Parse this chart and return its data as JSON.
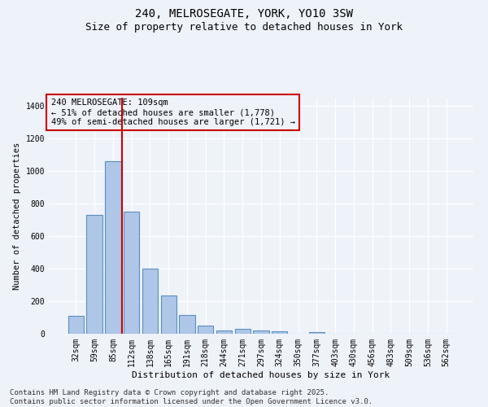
{
  "title1": "240, MELROSEGATE, YORK, YO10 3SW",
  "title2": "Size of property relative to detached houses in York",
  "xlabel": "Distribution of detached houses by size in York",
  "ylabel": "Number of detached properties",
  "categories": [
    "32sqm",
    "59sqm",
    "85sqm",
    "112sqm",
    "138sqm",
    "165sqm",
    "191sqm",
    "218sqm",
    "244sqm",
    "271sqm",
    "297sqm",
    "324sqm",
    "350sqm",
    "377sqm",
    "403sqm",
    "430sqm",
    "456sqm",
    "483sqm",
    "509sqm",
    "536sqm",
    "562sqm"
  ],
  "values": [
    110,
    730,
    1060,
    750,
    400,
    235,
    115,
    52,
    22,
    28,
    22,
    15,
    0,
    10,
    0,
    0,
    0,
    0,
    0,
    0,
    0
  ],
  "bar_color": "#aec6e8",
  "bar_edge_color": "#5a8fc0",
  "vline_color": "#cc0000",
  "vline_x_index": 2.5,
  "annotation_text": "240 MELROSEGATE: 109sqm\n← 51% of detached houses are smaller (1,778)\n49% of semi-detached houses are larger (1,721) →",
  "annotation_box_color": "#cc0000",
  "ylim": [
    0,
    1450
  ],
  "yticks": [
    0,
    200,
    400,
    600,
    800,
    1000,
    1200,
    1400
  ],
  "background_color": "#eef2f9",
  "grid_color": "#ffffff",
  "footnote": "Contains HM Land Registry data © Crown copyright and database right 2025.\nContains public sector information licensed under the Open Government Licence v3.0.",
  "title_fontsize": 10,
  "subtitle_fontsize": 9,
  "annotation_fontsize": 7.5,
  "tick_fontsize": 7,
  "ylabel_fontsize": 7.5,
  "xlabel_fontsize": 8,
  "footnote_fontsize": 6.5
}
